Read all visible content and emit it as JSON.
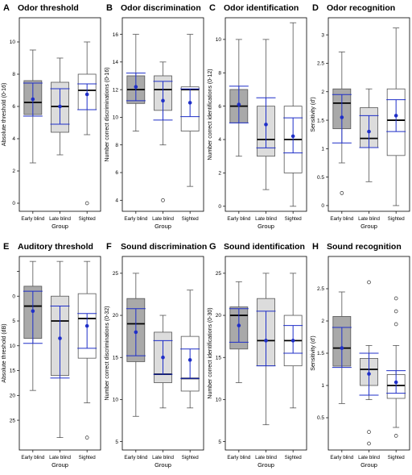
{
  "colors": {
    "early_blind_fill": "#a9a9a9",
    "late_blind_fill": "#dcdcdc",
    "sighted_fill": "#ffffff",
    "box_stroke": "#555555",
    "median": "#000000",
    "mean_marker": "#1f2fc8"
  },
  "chart_data": [
    {
      "letter": "A",
      "title": "Odor threshold",
      "type": "boxplot",
      "ylabel": "Absolute threshold (0-16)",
      "xlabel": "Group",
      "ylim": [
        -0.5,
        11.5
      ],
      "yticks": [
        0,
        2,
        4,
        6,
        8,
        10
      ],
      "inverted": false,
      "categories": [
        "Early blind",
        "Late blind",
        "Sighted"
      ],
      "groups": [
        {
          "q1": 5.5,
          "median": 6.25,
          "q3": 7.6,
          "whisker_low": 2.5,
          "whisker_high": 9.5,
          "mean": 6.45,
          "ci_low": 5.4,
          "ci_high": 7.45,
          "outliers": []
        },
        {
          "q1": 4.4,
          "median": 6.0,
          "q3": 7.5,
          "whisker_low": 3.0,
          "whisker_high": 9.0,
          "mean": 6.0,
          "ci_low": 4.9,
          "ci_high": 7.1,
          "outliers": []
        },
        {
          "q1": 5.8,
          "median": 7.0,
          "q3": 8.0,
          "whisker_low": 4.25,
          "whisker_high": 10.0,
          "mean": 6.75,
          "ci_low": 5.8,
          "ci_high": 7.4,
          "outliers": [
            0
          ]
        }
      ]
    },
    {
      "letter": "B",
      "title": "Odor discrimination",
      "type": "boxplot",
      "ylabel": "Number correct discriminations (0-16)",
      "xlabel": "Group",
      "ylim": [
        3.2,
        17.2
      ],
      "yticks": [
        4,
        6,
        8,
        10,
        12,
        14,
        16
      ],
      "inverted": false,
      "categories": [
        "Early blind",
        "Late blind",
        "Sighted"
      ],
      "groups": [
        {
          "q1": 11.0,
          "median": 12.0,
          "q3": 13.0,
          "whisker_low": 9.0,
          "whisker_high": 16.0,
          "mean": 12.2,
          "ci_low": 11.2,
          "ci_high": 13.2,
          "outliers": []
        },
        {
          "q1": 10.5,
          "median": 12.0,
          "q3": 13.0,
          "whisker_low": 8.0,
          "whisker_high": 14.0,
          "mean": 11.2,
          "ci_low": 9.8,
          "ci_high": 12.6,
          "outliers": [
            4
          ]
        },
        {
          "q1": 9.0,
          "median": 12.0,
          "q3": 12.2,
          "whisker_low": 5.0,
          "whisker_high": 16.0,
          "mean": 11.05,
          "ci_low": 10.05,
          "ci_high": 12.05,
          "outliers": []
        }
      ]
    },
    {
      "letter": "C",
      "title": "Odor identification",
      "type": "boxplot",
      "ylabel": "Number correct identifications (0-12)",
      "xlabel": "Group",
      "ylim": [
        -0.3,
        11.3
      ],
      "yticks": [
        0,
        2,
        4,
        6,
        8,
        10
      ],
      "inverted": false,
      "categories": [
        "Early blind",
        "Late blind",
        "Sighted"
      ],
      "groups": [
        {
          "q1": 5.0,
          "median": 6.0,
          "q3": 7.0,
          "whisker_low": 3.0,
          "whisker_high": 10.0,
          "mean": 6.1,
          "ci_low": 5.0,
          "ci_high": 7.2,
          "outliers": []
        },
        {
          "q1": 3.0,
          "median": 4.0,
          "q3": 6.0,
          "whisker_low": 1.0,
          "whisker_high": 10.0,
          "mean": 4.9,
          "ci_low": 3.5,
          "ci_high": 6.5,
          "outliers": []
        },
        {
          "q1": 2.0,
          "median": 4.0,
          "q3": 6.0,
          "whisker_low": 0.0,
          "whisker_high": 11.0,
          "mean": 4.2,
          "ci_low": 3.2,
          "ci_high": 5.3,
          "outliers": []
        }
      ]
    },
    {
      "letter": "D",
      "title": "Odor recognition",
      "type": "boxplot",
      "ylabel": "Sensitivity (d')",
      "xlabel": "Group",
      "ylim": [
        -0.1,
        3.3
      ],
      "yticks": [
        0,
        0.5,
        1,
        1.5,
        2,
        2.5,
        3
      ],
      "inverted": false,
      "categories": [
        "Early blind",
        "Late blind",
        "Sighted"
      ],
      "groups": [
        {
          "q1": 1.35,
          "median": 1.8,
          "q3": 2.05,
          "whisker_low": 0.75,
          "whisker_high": 2.7,
          "mean": 1.55,
          "ci_low": 1.1,
          "ci_high": 1.95,
          "outliers": [
            0.22
          ]
        },
        {
          "q1": 1.02,
          "median": 1.18,
          "q3": 1.72,
          "whisker_low": 0.42,
          "whisker_high": 2.05,
          "mean": 1.3,
          "ci_low": 1.02,
          "ci_high": 1.58,
          "outliers": []
        },
        {
          "q1": 0.88,
          "median": 1.5,
          "q3": 2.05,
          "whisker_low": 0.0,
          "whisker_high": 3.12,
          "mean": 1.58,
          "ci_low": 1.3,
          "ci_high": 1.86,
          "outliers": []
        }
      ]
    },
    {
      "letter": "E",
      "title": "Auditory threshold",
      "type": "boxplot",
      "ylabel": "Absolute threshold (dB)",
      "xlabel": "Group",
      "ylim": [
        -8,
        31
      ],
      "yticks": [
        -5,
        0,
        5,
        10,
        15,
        20,
        25
      ],
      "tick_labels": [
        "",
        "0",
        "5",
        "10",
        "15",
        "20",
        "25"
      ],
      "inverted": true,
      "categories": [
        "Early blind",
        "Late blind",
        "Sighted"
      ],
      "groups": [
        {
          "q1": -2.0,
          "median": 2.0,
          "q3": 8.5,
          "whisker_low": -7.0,
          "whisker_high": 19.0,
          "mean": 3.0,
          "ci_low": -1.0,
          "ci_high": 9.5,
          "outliers": []
        },
        {
          "q1": 0.0,
          "median": 5.0,
          "q3": 16.0,
          "whisker_low": -7.0,
          "whisker_high": 28.5,
          "mean": 8.5,
          "ci_low": 2.0,
          "ci_high": 16.5,
          "outliers": []
        },
        {
          "q1": -0.5,
          "median": 4.5,
          "q3": 12.5,
          "whisker_low": -7.0,
          "whisker_high": 21.5,
          "mean": 6.0,
          "ci_low": 3.5,
          "ci_high": 10.5,
          "outliers": [
            28.5
          ]
        }
      ]
    },
    {
      "letter": "F",
      "title": "Sound discrimination",
      "type": "boxplot",
      "ylabel": "Number correct discriminations (0-32)",
      "xlabel": "Group",
      "ylim": [
        4,
        27
      ],
      "yticks": [
        5,
        10,
        15,
        20,
        25
      ],
      "inverted": false,
      "categories": [
        "Early blind",
        "Late blind",
        "Sighted"
      ],
      "groups": [
        {
          "q1": 14.5,
          "median": 19.0,
          "q3": 22.0,
          "whisker_low": 8.0,
          "whisker_high": 25.0,
          "mean": 18.0,
          "ci_low": 15.2,
          "ci_high": 20.8,
          "outliers": []
        },
        {
          "q1": 12.0,
          "median": 13.0,
          "q3": 18.0,
          "whisker_low": 9.0,
          "whisker_high": 20.0,
          "mean": 15.0,
          "ci_low": 13.0,
          "ci_high": 17.0,
          "outliers": []
        },
        {
          "q1": 11.0,
          "median": 12.5,
          "q3": 17.5,
          "whisker_low": 9.0,
          "whisker_high": 23.0,
          "mean": 14.7,
          "ci_low": 12.5,
          "ci_high": 16.0,
          "outliers": []
        }
      ]
    },
    {
      "letter": "G",
      "title": "Sound identification",
      "type": "boxplot",
      "ylabel": "Number correct identifications (0-30)",
      "xlabel": "Group",
      "ylim": [
        4,
        27
      ],
      "yticks": [
        5,
        10,
        15,
        20,
        25
      ],
      "inverted": false,
      "categories": [
        "Early blind",
        "Late blind",
        "Sighted"
      ],
      "groups": [
        {
          "q1": 16.0,
          "median": 20.0,
          "q3": 21.0,
          "whisker_low": 12.0,
          "whisker_high": 24.0,
          "mean": 18.8,
          "ci_low": 16.8,
          "ci_high": 20.8,
          "outliers": []
        },
        {
          "q1": 14.0,
          "median": 17.0,
          "q3": 22.0,
          "whisker_low": 7.0,
          "whisker_high": 25.0,
          "mean": 17.0,
          "ci_low": 14.0,
          "ci_high": 20.5,
          "outliers": []
        },
        {
          "q1": 14.0,
          "median": 17.0,
          "q3": 20.0,
          "whisker_low": 9.0,
          "whisker_high": 25.0,
          "mean": 17.0,
          "ci_low": 15.5,
          "ci_high": 18.8,
          "outliers": []
        }
      ]
    },
    {
      "letter": "H",
      "title": "Sound recognition",
      "type": "boxplot",
      "ylabel": "Sensitivity (d')",
      "xlabel": "Group",
      "ylim": [
        0,
        3.0
      ],
      "yticks": [
        0.5,
        1,
        1.5,
        2,
        2.5
      ],
      "inverted": false,
      "categories": [
        "Early blind",
        "Late blind",
        "Sighted"
      ],
      "groups": [
        {
          "q1": 1.3,
          "median": 1.58,
          "q3": 2.07,
          "whisker_low": 0.72,
          "whisker_high": 2.45,
          "mean": 1.58,
          "ci_low": 1.28,
          "ci_high": 1.9,
          "outliers": []
        },
        {
          "q1": 1.0,
          "median": 1.25,
          "q3": 1.42,
          "whisker_low": 0.78,
          "whisker_high": 1.62,
          "mean": 1.18,
          "ci_low": 0.85,
          "ci_high": 1.5,
          "outliers": [
            2.6,
            0.28,
            0.1
          ]
        },
        {
          "q1": 0.8,
          "median": 1.0,
          "q3": 1.17,
          "whisker_low": 0.35,
          "whisker_high": 1.62,
          "mean": 1.05,
          "ci_low": 0.88,
          "ci_high": 1.23,
          "outliers": [
            2.35,
            2.15,
            1.95,
            0.22
          ]
        }
      ]
    }
  ]
}
